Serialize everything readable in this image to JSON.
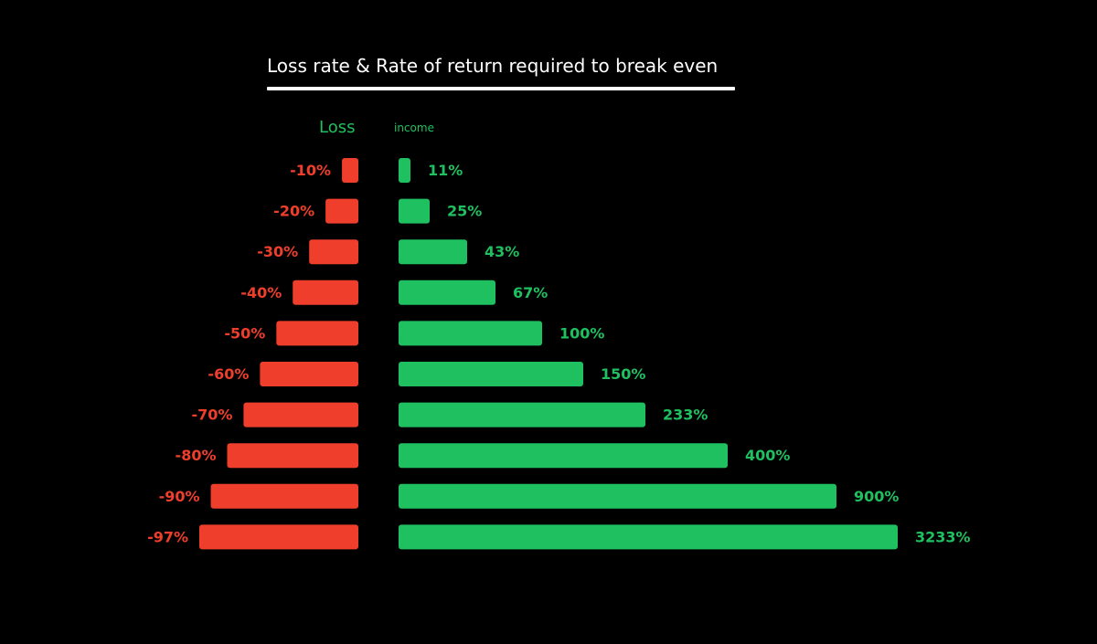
{
  "chart_data": {
    "type": "bar",
    "title": "Loss rate & Rate of return required to break even",
    "series": [
      {
        "name": "Loss",
        "values": [
          -10,
          -20,
          -30,
          -40,
          -50,
          -60,
          -70,
          -80,
          -90,
          -97
        ],
        "labels": [
          "-10%",
          "-20%",
          "-30%",
          "-40%",
          "-50%",
          "-60%",
          "-70%",
          "-80%",
          "-90%",
          "-97%"
        ],
        "color": "#ef3f2c"
      },
      {
        "name": "income",
        "values": [
          11,
          25,
          43,
          67,
          100,
          150,
          233,
          400,
          900,
          3233
        ],
        "labels": [
          "11%",
          "25%",
          "43%",
          "67%",
          "100%",
          "150%",
          "233%",
          "400%",
          "900%",
          "3233%"
        ],
        "color": "#1fc060"
      }
    ],
    "grid": false
  }
}
